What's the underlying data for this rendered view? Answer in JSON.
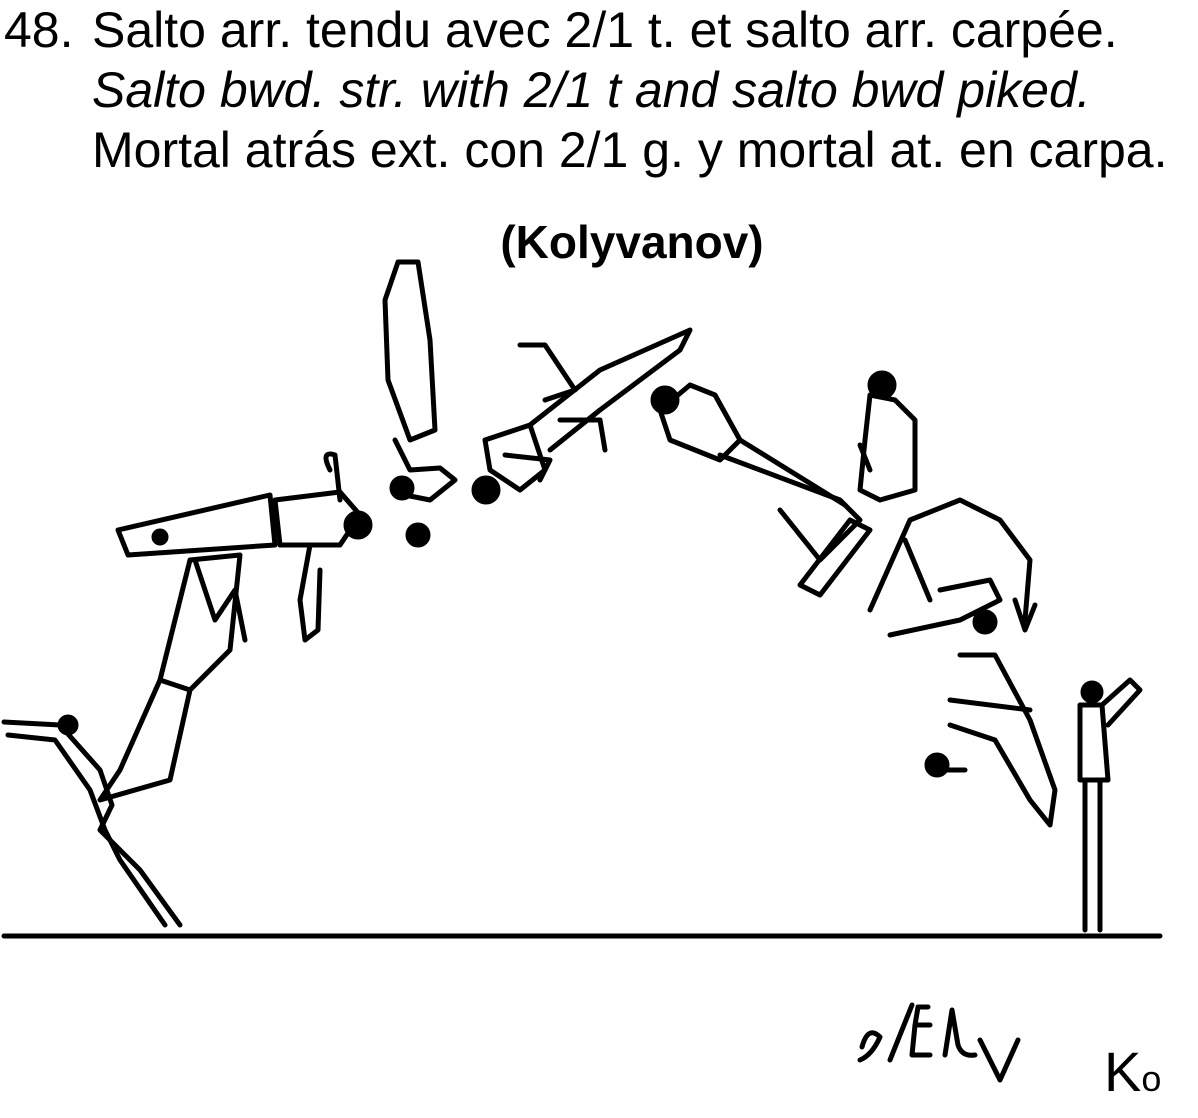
{
  "element": {
    "number": "48.",
    "description_fr": "Salto arr. tendu avec 2/1 t. et salto arr. carpée.",
    "description_en": "Salto bwd. str. with 2/1 t and salto bwd piked.",
    "description_es": "Mortal atrás ext. con 2/1 g. y mortal at. en carpa.",
    "name": "(Kolyvanov)",
    "code_letter": "K",
    "code_sub": "o"
  },
  "colors": {
    "ink": "#000000",
    "paper": "#ffffff"
  }
}
